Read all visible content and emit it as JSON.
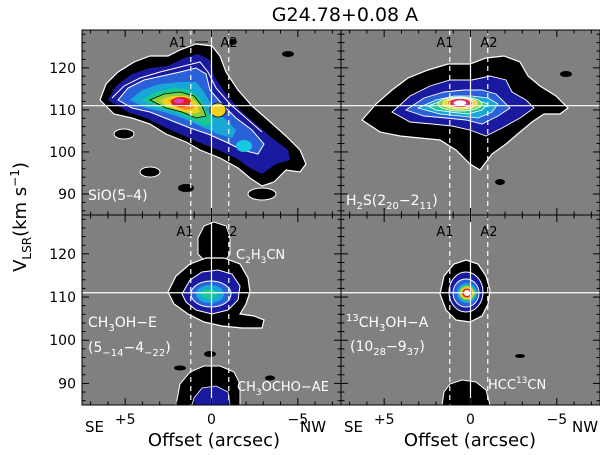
{
  "figure": {
    "title": "G24.78+0.08 A",
    "ylabel_main": "V",
    "ylabel_sub": "LSR",
    "ylabel_units": "(km s",
    "ylabel_exp": "−1",
    "ylabel_close": ")",
    "xlabel": "Offset (arcsec)",
    "se_label": "SE",
    "nw_label": "NW",
    "background_color": "#808080",
    "line_color": "#ffffff"
  },
  "chart_data": [
    {
      "type": "heatmap",
      "panel": "top-left",
      "molecule_label": "SiO(5–4)",
      "xlim": [
        7.5,
        -7.5
      ],
      "ylim": [
        85,
        129
      ],
      "xticks": [
        5,
        0,
        -5
      ],
      "xtick_labels": [
        "+5",
        "0",
        "−5"
      ],
      "yticks": [
        90,
        100,
        110,
        120
      ],
      "ytick_labels": [
        "90",
        "100",
        "110",
        "120"
      ],
      "hline_v": 111,
      "vline_solid_x": 0,
      "vlines_dashed_x": [
        1.2,
        -1.0
      ],
      "source_labels": [
        "A1",
        "A2"
      ],
      "peak": {
        "x": -1.0,
        "v": 111
      }
    },
    {
      "type": "heatmap",
      "panel": "top-right",
      "molecule_label": "H",
      "molecule_sub": "2",
      "molecule_rest": "S(2",
      "molecule_q1": "20",
      "molecule_mid": "−2",
      "molecule_q2": "11",
      "molecule_end": ")",
      "xlim": [
        7.5,
        -7.5
      ],
      "ylim": [
        85,
        129
      ],
      "xticks": [
        5,
        0,
        -5
      ],
      "yticks": [
        90,
        100,
        110,
        120
      ],
      "hline_v": 111,
      "vline_solid_x": 0,
      "vlines_dashed_x": [
        1.2,
        -1.0
      ],
      "source_labels": [
        "A1",
        "A2"
      ],
      "peak": {
        "x": -0.3,
        "v": 111.5
      }
    },
    {
      "type": "heatmap",
      "panel": "bottom-left",
      "molecule_label": "CH",
      "molecule_sub": "3",
      "molecule_rest": "OH−E",
      "transition_pre": "(5",
      "transition_q1": "−1",
      "transition_q1b": "4",
      "transition_mid": "−4",
      "transition_q2": "−2",
      "transition_q2b": "2",
      "transition_end": ")",
      "extra_labels": [
        {
          "text": "C",
          "sub": "2",
          "rest": "H",
          "sub2": "3",
          "end": "CN"
        },
        {
          "text": "CH",
          "sub": "3",
          "rest": "OCHO−AE"
        }
      ],
      "xlim": [
        7.5,
        -7.5
      ],
      "ylim": [
        85,
        129
      ],
      "xticks": [
        5,
        0,
        -5
      ],
      "xtick_labels": [
        "+5",
        "0",
        "−5"
      ],
      "yticks": [
        90,
        100,
        110,
        120
      ],
      "ytick_labels": [
        "90",
        "100",
        "110",
        "120"
      ],
      "hline_v": 111,
      "vline_solid_x": 0,
      "vlines_dashed_x": [
        1.2,
        -1.0
      ],
      "source_labels": [
        "A1",
        "A2"
      ],
      "peak": {
        "x": -0.5,
        "v": 110.5
      }
    },
    {
      "type": "heatmap",
      "panel": "bottom-right",
      "molecule_sup": "13",
      "molecule_label": "CH",
      "molecule_sub": "3",
      "molecule_rest": "OH−A",
      "transition_pre": "(10",
      "transition_q1": "28",
      "transition_mid": "−9",
      "transition_q2": "37",
      "transition_end": ")",
      "extra_labels": [
        {
          "text": "HCC",
          "sup": "13",
          "rest": "CN"
        }
      ],
      "xlim": [
        7.5,
        -7.5
      ],
      "ylim": [
        85,
        129
      ],
      "xticks": [
        5,
        0,
        -5
      ],
      "xtick_labels": [
        "+5",
        "0",
        "−5"
      ],
      "yticks": [
        90,
        100,
        110,
        120
      ],
      "hline_v": 111,
      "vline_solid_x": 0,
      "vlines_dashed_x": [
        1.2,
        -1.0
      ],
      "source_labels": [
        "A1",
        "A2"
      ],
      "peak": {
        "x": -0.5,
        "v": 111
      }
    }
  ]
}
